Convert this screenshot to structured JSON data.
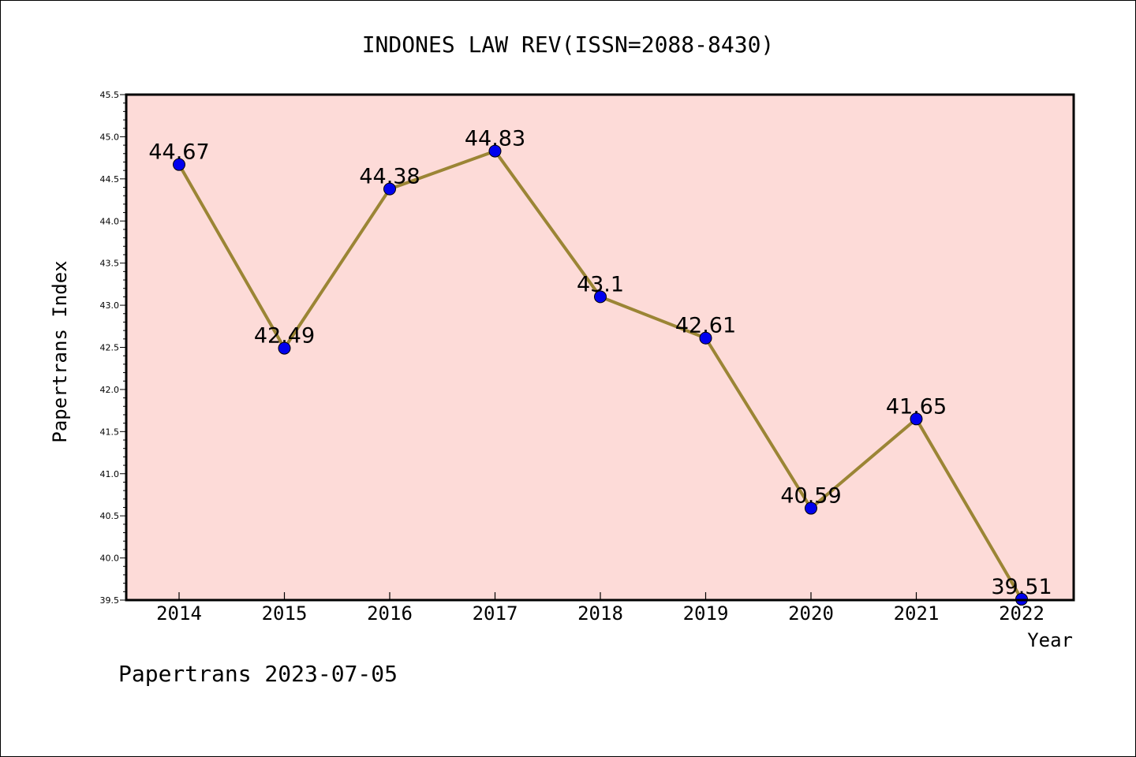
{
  "chart_data": {
    "type": "line",
    "title": "INDONES LAW REV(ISSN=2088-8430)",
    "xlabel": "Year",
    "ylabel": "Papertrans Index",
    "categories": [
      "2014",
      "2015",
      "2016",
      "2017",
      "2018",
      "2019",
      "2020",
      "2021",
      "2022"
    ],
    "series": [
      {
        "values": [
          44.67,
          42.49,
          44.38,
          44.83,
          43.1,
          42.61,
          40.59,
          41.65,
          39.51
        ],
        "labels": [
          "44.67",
          "42.49",
          "44.38",
          "44.83",
          "43.1",
          "42.61",
          "40.59",
          "41.65",
          "39.51"
        ]
      }
    ],
    "ylim": [
      39.5,
      45.5
    ],
    "yticks": [
      "39.5",
      "40.0",
      "40.5",
      "41.0",
      "41.5",
      "42.0",
      "42.5",
      "43.0",
      "43.5",
      "44.0",
      "44.5",
      "45.0",
      "45.5"
    ],
    "grid": false,
    "colors": {
      "plot_background": "#fddbd8",
      "line": "#9b8535",
      "marker": "#0000ee"
    }
  },
  "footer": "Papertrans 2023-07-05"
}
